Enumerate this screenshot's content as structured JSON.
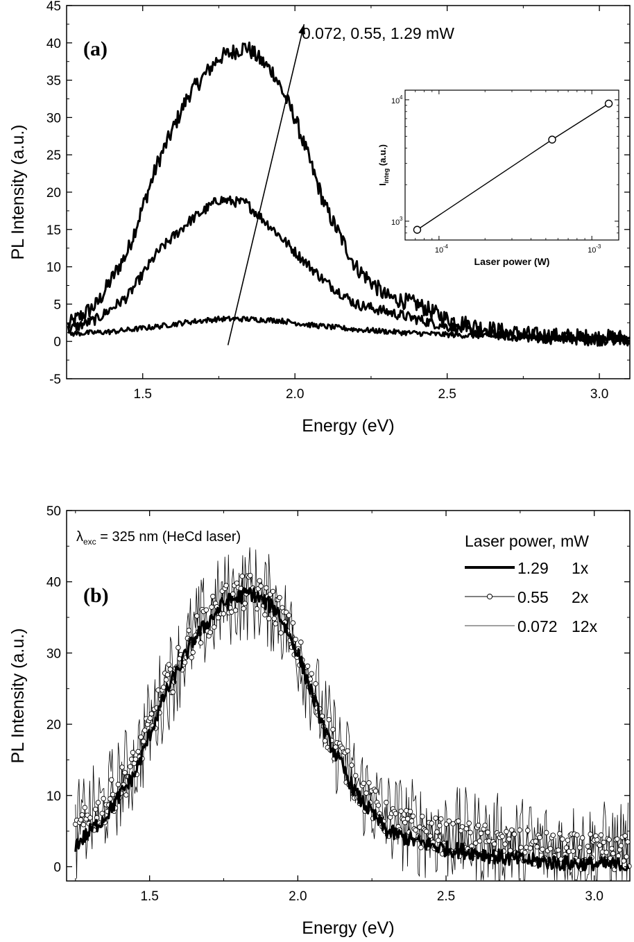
{
  "chart_data": [
    {
      "panel": "a",
      "type": "line",
      "panel_label": "(a)",
      "xlabel": "Energy (eV)",
      "ylabel": "PL Intensity (a.u.)",
      "xlim": [
        1.25,
        3.1
      ],
      "ylim": [
        -5,
        45
      ],
      "x_ticks": [
        1.5,
        2.0,
        2.5,
        3.0
      ],
      "x_tick_labels": [
        "1.5",
        "2.0",
        "2.5",
        "3.0"
      ],
      "y_ticks": [
        -5,
        0,
        5,
        10,
        15,
        20,
        25,
        30,
        35,
        40,
        45
      ],
      "y_tick_labels": [
        "-5",
        "0",
        "5",
        "10",
        "15",
        "20",
        "25",
        "30",
        "35",
        "40",
        "45"
      ],
      "annotation": "0.072, 0.55, 1.29 mW",
      "arrow": {
        "from": [
          1.78,
          -0.5
        ],
        "to": [
          2.03,
          42.5
        ]
      },
      "series": [
        {
          "power_mW": 1.29,
          "peak_x": 1.84,
          "peak_y": 39.5,
          "profile": [
            [
              1.25,
              2
            ],
            [
              1.35,
              5
            ],
            [
              1.45,
              12
            ],
            [
              1.55,
              24
            ],
            [
              1.65,
              33
            ],
            [
              1.75,
              38
            ],
            [
              1.84,
              39.5
            ],
            [
              1.93,
              36
            ],
            [
              2.0,
              30
            ],
            [
              2.1,
              18
            ],
            [
              2.2,
              10
            ],
            [
              2.3,
              6
            ],
            [
              2.4,
              5
            ],
            [
              2.5,
              3
            ],
            [
              2.6,
              2
            ],
            [
              2.7,
              1.2
            ],
            [
              2.8,
              0.8
            ],
            [
              3.0,
              0.5
            ],
            [
              3.1,
              0.5
            ]
          ]
        },
        {
          "power_mW": 0.55,
          "peak_x": 1.78,
          "peak_y": 19.0,
          "profile": [
            [
              1.25,
              1.5
            ],
            [
              1.35,
              3
            ],
            [
              1.45,
              6
            ],
            [
              1.55,
              12
            ],
            [
              1.65,
              16
            ],
            [
              1.75,
              19
            ],
            [
              1.84,
              18.5
            ],
            [
              1.93,
              15
            ],
            [
              2.0,
              12
            ],
            [
              2.1,
              8
            ],
            [
              2.2,
              5
            ],
            [
              2.3,
              4
            ],
            [
              2.4,
              3
            ],
            [
              2.5,
              2
            ],
            [
              2.6,
              1.2
            ],
            [
              2.7,
              0.8
            ],
            [
              2.8,
              0.5
            ],
            [
              3.0,
              0.3
            ],
            [
              3.1,
              0.3
            ]
          ]
        },
        {
          "power_mW": 0.072,
          "peak_x": 1.8,
          "peak_y": 3.0,
          "profile": [
            [
              1.25,
              1
            ],
            [
              1.4,
              1.3
            ],
            [
              1.55,
              2
            ],
            [
              1.65,
              2.6
            ],
            [
              1.75,
              3
            ],
            [
              1.84,
              3
            ],
            [
              1.95,
              2.8
            ],
            [
              2.05,
              2.2
            ],
            [
              2.2,
              1.6
            ],
            [
              2.35,
              1.2
            ],
            [
              2.5,
              0.9
            ],
            [
              2.7,
              0.6
            ],
            [
              2.9,
              0.4
            ],
            [
              3.1,
              0.3
            ]
          ]
        }
      ],
      "inset": {
        "type": "scatter",
        "xlabel": "Laser power (W)",
        "ylabel": "I",
        "ylabel_sub": "integ",
        "ylabel_rest": " (a.u.)",
        "x_scale": "log",
        "y_scale": "log",
        "x_ticks": [
          "10",
          "10"
        ],
        "x_tick_exps": [
          "-4",
          "-3"
        ],
        "y_ticks": [
          "10",
          "10"
        ],
        "y_tick_exps": [
          "3",
          "4"
        ],
        "points": [
          {
            "x": 7.2e-05,
            "y": 850
          },
          {
            "x": 0.00055,
            "y": 4700
          },
          {
            "x": 0.00129,
            "y": 9300
          }
        ]
      }
    },
    {
      "panel": "b",
      "type": "line",
      "panel_label": "(b)",
      "xlabel": "Energy (eV)",
      "ylabel": "PL Intensity (a.u.)",
      "xlim": [
        1.22,
        3.12
      ],
      "ylim": [
        -2,
        50
      ],
      "x_ticks": [
        1.5,
        2.0,
        2.5,
        3.0
      ],
      "x_tick_labels": [
        "1.5",
        "2.0",
        "2.5",
        "3.0"
      ],
      "y_ticks": [
        0,
        10,
        20,
        30,
        40,
        50
      ],
      "y_tick_labels": [
        "0",
        "10",
        "20",
        "30",
        "40",
        "50"
      ],
      "excitation_prefix": "λ",
      "excitation_sub": "exc",
      "excitation_rest": " = 325 nm (HeCd laser)",
      "legend_title": "Laser power, mW",
      "legend": [
        {
          "power": "1.29",
          "scale": "1x",
          "style": "thick"
        },
        {
          "power": "0.55",
          "scale": "2x",
          "style": "circles"
        },
        {
          "power": "0.072",
          "scale": "12x",
          "style": "thin"
        }
      ],
      "series": [
        {
          "name": "1.29 1x",
          "peak_x": 1.84,
          "peak_y": 39.5
        },
        {
          "name": "0.55 2x",
          "peak_x": 1.78,
          "peak_y": 38.0
        },
        {
          "name": "0.072 12x",
          "peak_x": 1.8,
          "peak_y": 36.0
        }
      ]
    }
  ]
}
